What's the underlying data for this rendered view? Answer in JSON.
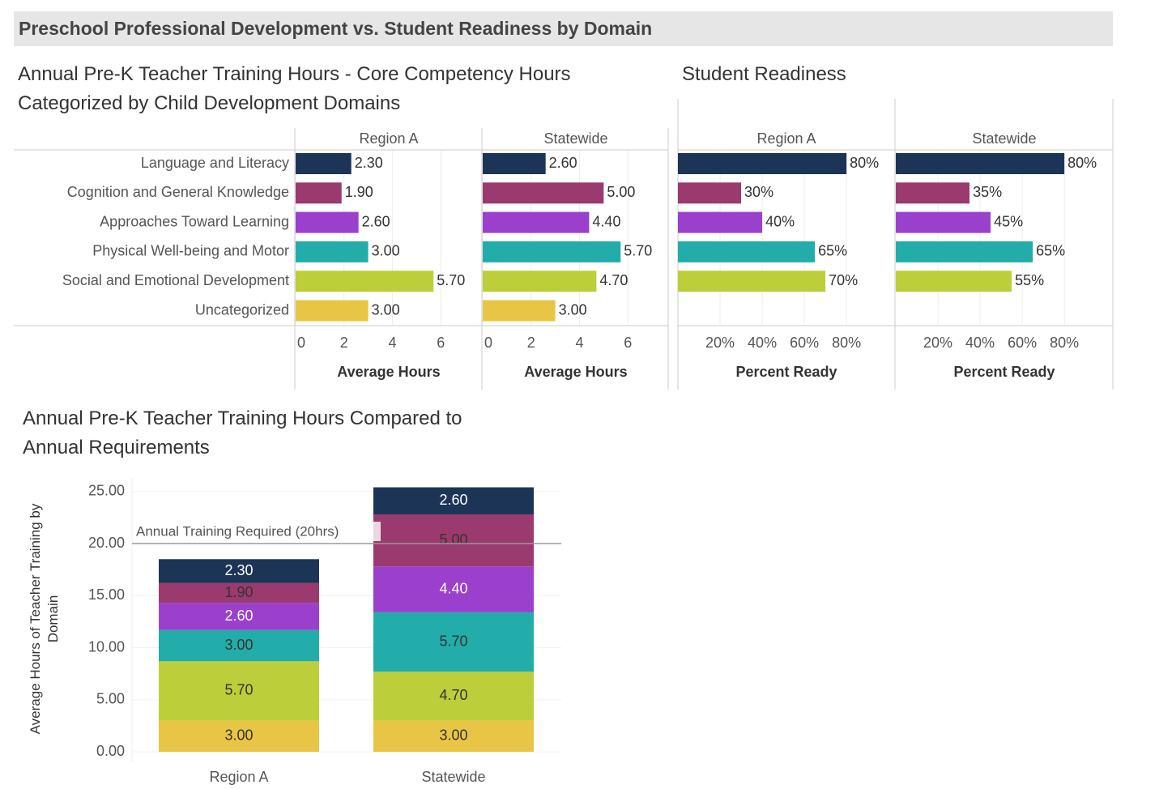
{
  "title": "Preschool Professional Development vs. Student Readiness by Domain",
  "chart_data": [
    {
      "type": "hbar_panels",
      "title": "Annual Pre-K Teacher Training Hours - Core Competency Hours Categorized by Child Development Domains",
      "categories": [
        "Language and Literacy",
        "Cognition and General Knowledge",
        "Approaches Toward Learning",
        "Physical Well-being and Motor",
        "Social and Emotional Development",
        "Uncategorized"
      ],
      "colors": [
        "#1c3557",
        "#9b3a6e",
        "#9a40cc",
        "#22adaa",
        "#bcce3a",
        "#e8c545"
      ],
      "panels": [
        {
          "name": "Region A",
          "values": [
            2.3,
            1.9,
            2.6,
            3.0,
            5.7,
            3.0
          ],
          "value_labels": [
            "2.30",
            "1.90",
            "2.60",
            "3.00",
            "5.70",
            "3.00"
          ]
        },
        {
          "name": "Statewide",
          "values": [
            2.6,
            5.0,
            4.4,
            5.7,
            4.7,
            3.0
          ],
          "value_labels": [
            "2.60",
            "5.00",
            "4.40",
            "5.70",
            "4.70",
            "3.00"
          ]
        }
      ],
      "xlabel": "Average Hours",
      "xlim": [
        0,
        7.7
      ],
      "xticks": [
        0,
        2,
        4,
        6
      ],
      "grid": true
    },
    {
      "type": "hbar_panels",
      "title": "Student Readiness",
      "colors": [
        "#1c3557",
        "#9b3a6e",
        "#9a40cc",
        "#22adaa",
        "#bcce3a",
        "#e8c545"
      ],
      "panels": [
        {
          "name": "Region A",
          "values": [
            80,
            30,
            40,
            65,
            70,
            null
          ],
          "value_labels": [
            "80%",
            "30%",
            "40%",
            "65%",
            "70%",
            null
          ]
        },
        {
          "name": "Statewide",
          "values": [
            80,
            35,
            45,
            65,
            55,
            null
          ],
          "value_labels": [
            "80%",
            "35%",
            "45%",
            "65%",
            "55%",
            null
          ]
        }
      ],
      "xlabel": "Percent Ready",
      "xlim": [
        0,
        103
      ],
      "xticks": [
        {
          "value": 20,
          "label": "20%"
        },
        {
          "value": 40,
          "label": "40%"
        },
        {
          "value": 60,
          "label": "60%"
        },
        {
          "value": 80,
          "label": "80%"
        }
      ],
      "grid": true
    },
    {
      "type": "stacked_bar",
      "title": "Annual Pre-K Teacher Training Hours Compared to Annual Requirements",
      "ylabel": "Average Hours of Teacher Training by Domain",
      "categories": [
        "Region A",
        "Statewide"
      ],
      "series": [
        {
          "color": "#e8c545",
          "label_color": "#333333",
          "values": [
            3.0,
            3.0
          ],
          "value_labels": [
            "3.00",
            "3.00"
          ]
        },
        {
          "color": "#bcce3a",
          "label_color": "#333333",
          "values": [
            5.7,
            4.7
          ],
          "value_labels": [
            "5.70",
            "4.70"
          ]
        },
        {
          "color": "#22adaa",
          "label_color": "#333333",
          "values": [
            3.0,
            5.7
          ],
          "value_labels": [
            "3.00",
            "5.70"
          ]
        },
        {
          "color": "#9a40cc",
          "label_color": "#ffffff",
          "values": [
            2.6,
            4.4
          ],
          "value_labels": [
            "2.60",
            "4.40"
          ]
        },
        {
          "color": "#9b3a6e",
          "label_color": "#333333",
          "values": [
            1.9,
            5.0
          ],
          "value_labels": [
            "1.90",
            "5.00"
          ]
        },
        {
          "color": "#1c3557",
          "label_color": "#ffffff",
          "values": [
            2.3,
            2.6
          ],
          "value_labels": [
            "2.30",
            "2.60"
          ]
        }
      ],
      "ylim": [
        -1,
        26.3
      ],
      "yticks": [
        {
          "value": 0,
          "label": "0.00"
        },
        {
          "value": 5,
          "label": "5.00"
        },
        {
          "value": 10,
          "label": "10.00"
        },
        {
          "value": 15,
          "label": "15.00"
        },
        {
          "value": 20,
          "label": "20.00"
        },
        {
          "value": 25,
          "label": "25.00"
        }
      ],
      "grid": true,
      "reference_line": {
        "value": 20,
        "label": "Annual Training Required (20hrs)"
      }
    }
  ]
}
